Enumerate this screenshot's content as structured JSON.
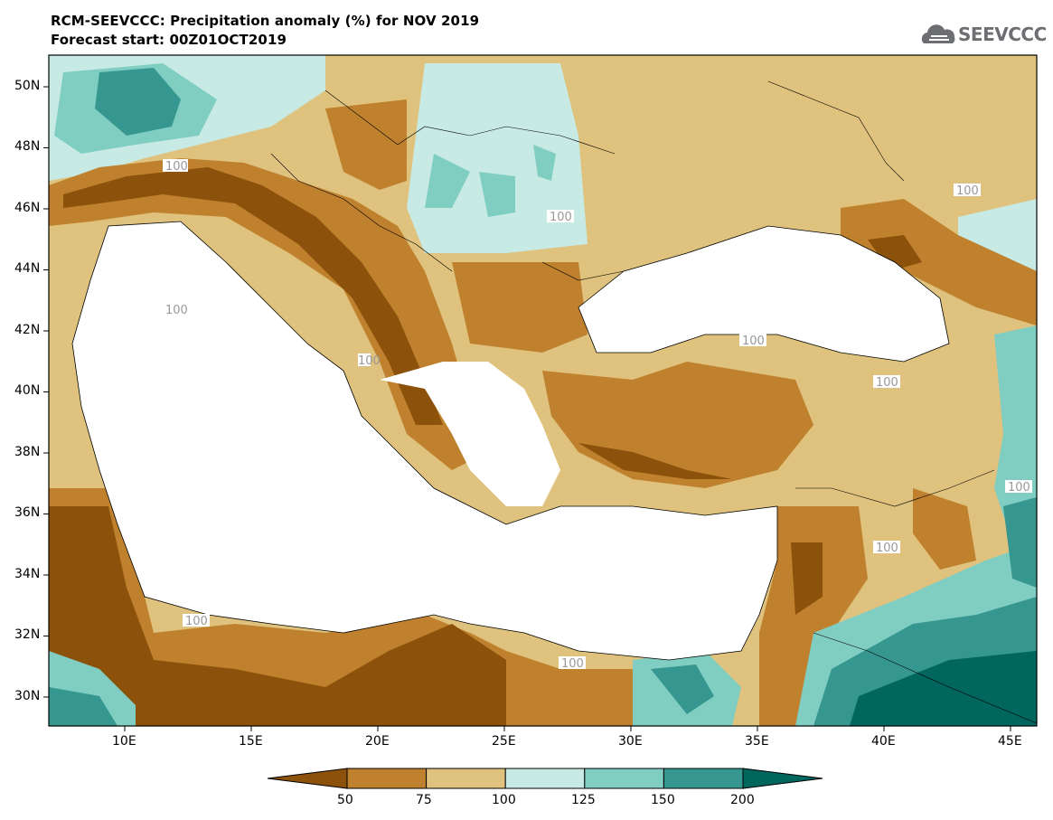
{
  "title": {
    "line1": "RCM-SEEVCCC: Precipitation anomaly (%) for NOV 2019",
    "line2": "Forecast start: 00Z01OCT2019"
  },
  "logo": {
    "text": "SEEVCCC",
    "icon": "cloud-icon"
  },
  "map": {
    "lon_range": [
      7,
      46
    ],
    "lat_range": [
      29,
      51
    ],
    "lat_ticks": [
      "50N",
      "48N",
      "46N",
      "44N",
      "42N",
      "40N",
      "38N",
      "36N",
      "34N",
      "32N",
      "30N"
    ],
    "lon_ticks": [
      "10E",
      "15E",
      "20E",
      "25E",
      "30E",
      "35E",
      "40E",
      "45E"
    ],
    "contour_labels": [
      "100",
      "100",
      "100",
      "100",
      "100",
      "100",
      "100",
      "100",
      "100",
      "100",
      "100"
    ]
  },
  "legend": {
    "levels": [
      "50",
      "75",
      "100",
      "125",
      "150",
      "200"
    ],
    "colors": [
      "#8c510a",
      "#bf812d",
      "#dfc27d",
      "#c7eae5",
      "#80cdc1",
      "#35978f",
      "#01665e"
    ]
  },
  "palette": {
    "very_dry": "#8c510a",
    "dry": "#bf812d",
    "slightly_dry": "#dfc27d",
    "slightly_wet": "#c7eae5",
    "wet": "#80cdc1",
    "very_wet": "#35978f",
    "extreme_wet": "#01665e"
  }
}
